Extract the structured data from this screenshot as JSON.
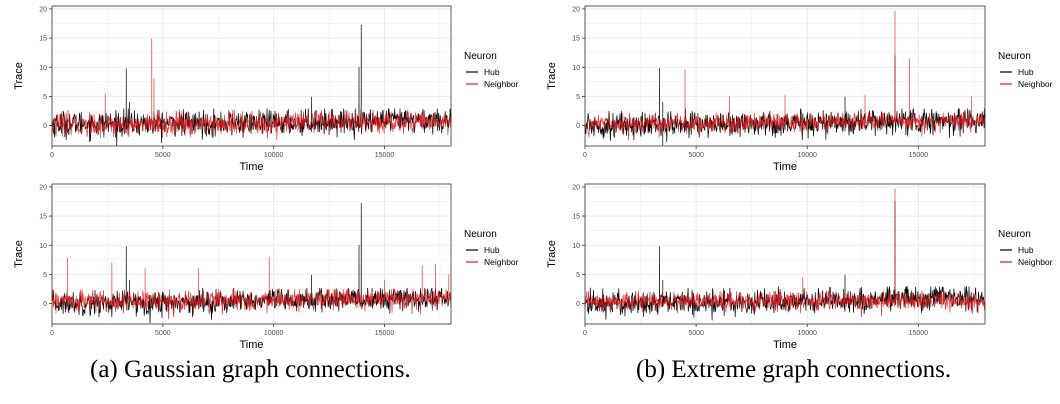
{
  "captions": {
    "a": "(a) Gaussian graph connections.",
    "b": "(b) Extreme graph connections."
  },
  "colors": {
    "hub": "#000000",
    "neighbor": "#e41a1c",
    "grid": "#ebebeb",
    "panel_border": "#333333"
  },
  "chart_data": [
    {
      "id": "a-top",
      "type": "line",
      "xlabel": "Time",
      "ylabel": "Trace",
      "xlim": [
        0,
        18000
      ],
      "ylim": [
        -3.5,
        20.5
      ],
      "xticks": [
        0,
        5000,
        10000,
        15000
      ],
      "yticks": [
        0,
        5,
        10,
        15,
        20
      ],
      "grid": true,
      "legend": {
        "title": "Neuron",
        "position": "right"
      },
      "series": [
        {
          "name": "Hub",
          "color": "#000000",
          "baseline": [
            [
              0,
              0.3
            ],
            [
              9000,
              0.4
            ],
            [
              18000,
              1.0
            ]
          ],
          "noise": 1.2,
          "spikes": [
            [
              3350,
              9.8
            ],
            [
              3500,
              4
            ],
            [
              11700,
              4.9
            ],
            [
              13850,
              10
            ],
            [
              13950,
              17.2
            ]
          ]
        },
        {
          "name": "Neighbor",
          "color": "#e41a1c",
          "baseline": [
            [
              0,
              0.1
            ],
            [
              9000,
              0.3
            ],
            [
              18000,
              0.8
            ]
          ],
          "noise": 1.1,
          "spikes": [
            [
              2400,
              5.5
            ],
            [
              4500,
              14.9
            ],
            [
              4600,
              8
            ],
            [
              13950,
              3.5
            ]
          ]
        }
      ]
    },
    {
      "id": "a-bottom",
      "type": "line",
      "xlabel": "Time",
      "ylabel": "Trace",
      "xlim": [
        0,
        18000
      ],
      "ylim": [
        -3.5,
        20.5
      ],
      "xticks": [
        0,
        5000,
        10000,
        15000
      ],
      "yticks": [
        0,
        5,
        10,
        15,
        20
      ],
      "grid": true,
      "legend": {
        "title": "Neuron",
        "position": "right"
      },
      "series": [
        {
          "name": "Hub",
          "color": "#000000",
          "baseline": [
            [
              0,
              0.0
            ],
            [
              9000,
              0.4
            ],
            [
              18000,
              1.0
            ]
          ],
          "noise": 1.1,
          "spikes": [
            [
              3350,
              9.8
            ],
            [
              3500,
              4
            ],
            [
              11700,
              4.9
            ],
            [
              13850,
              10
            ],
            [
              13950,
              17.2
            ]
          ]
        },
        {
          "name": "Neighbor",
          "color": "#e41a1c",
          "baseline": [
            [
              0,
              0.4
            ],
            [
              9000,
              0.5
            ],
            [
              18000,
              0.8
            ]
          ],
          "noise": 1.0,
          "spikes": [
            [
              700,
              7.8
            ],
            [
              2700,
              7
            ],
            [
              4200,
              6
            ],
            [
              6600,
              6
            ],
            [
              9800,
              8
            ],
            [
              15000,
              4
            ],
            [
              16700,
              6.5
            ],
            [
              17300,
              6.8
            ],
            [
              17900,
              5
            ]
          ]
        }
      ]
    },
    {
      "id": "b-top",
      "type": "line",
      "xlabel": "Time",
      "ylabel": "Trace",
      "xlim": [
        0,
        18000
      ],
      "ylim": [
        -3.5,
        20.5
      ],
      "xticks": [
        0,
        5000,
        10000,
        15000
      ],
      "yticks": [
        0,
        5,
        10,
        15,
        20
      ],
      "grid": true,
      "legend": {
        "title": "Neuron",
        "position": "right"
      },
      "series": [
        {
          "name": "Hub",
          "color": "#000000",
          "baseline": [
            [
              0,
              0.0
            ],
            [
              9000,
              0.4
            ],
            [
              18000,
              1.0
            ]
          ],
          "noise": 1.2,
          "spikes": [
            [
              3350,
              9.8
            ],
            [
              3500,
              4
            ],
            [
              11700,
              4.9
            ],
            [
              13950,
              12
            ]
          ]
        },
        {
          "name": "Neighbor",
          "color": "#e41a1c",
          "baseline": [
            [
              0,
              0.2
            ],
            [
              9000,
              0.6
            ],
            [
              18000,
              0.9
            ]
          ],
          "noise": 0.9,
          "spikes": [
            [
              4500,
              9.6
            ],
            [
              6500,
              5
            ],
            [
              9000,
              5.2
            ],
            [
              12600,
              5.2
            ],
            [
              13950,
              19.7
            ],
            [
              14600,
              11.5
            ],
            [
              17400,
              5
            ]
          ]
        }
      ]
    },
    {
      "id": "b-bottom",
      "type": "line",
      "xlabel": "Time",
      "ylabel": "Trace",
      "xlim": [
        0,
        18000
      ],
      "ylim": [
        -3.5,
        20.5
      ],
      "xticks": [
        0,
        5000,
        10000,
        15000
      ],
      "yticks": [
        0,
        5,
        10,
        15,
        20
      ],
      "grid": true,
      "legend": {
        "title": "Neuron",
        "position": "right"
      },
      "series": [
        {
          "name": "Hub",
          "color": "#000000",
          "baseline": [
            [
              0,
              0.0
            ],
            [
              9000,
              0.4
            ],
            [
              18000,
              1.0
            ]
          ],
          "noise": 1.2,
          "spikes": [
            [
              3350,
              9.8
            ],
            [
              3500,
              4
            ],
            [
              11700,
              4.9
            ],
            [
              13950,
              17.5
            ]
          ]
        },
        {
          "name": "Neighbor",
          "color": "#e41a1c",
          "baseline": [
            [
              0,
              0.2
            ],
            [
              9000,
              0.5
            ],
            [
              18000,
              0.5
            ]
          ],
          "noise": 0.9,
          "spikes": [
            [
              9800,
              4.5
            ],
            [
              13950,
              19.7
            ]
          ]
        }
      ]
    }
  ]
}
